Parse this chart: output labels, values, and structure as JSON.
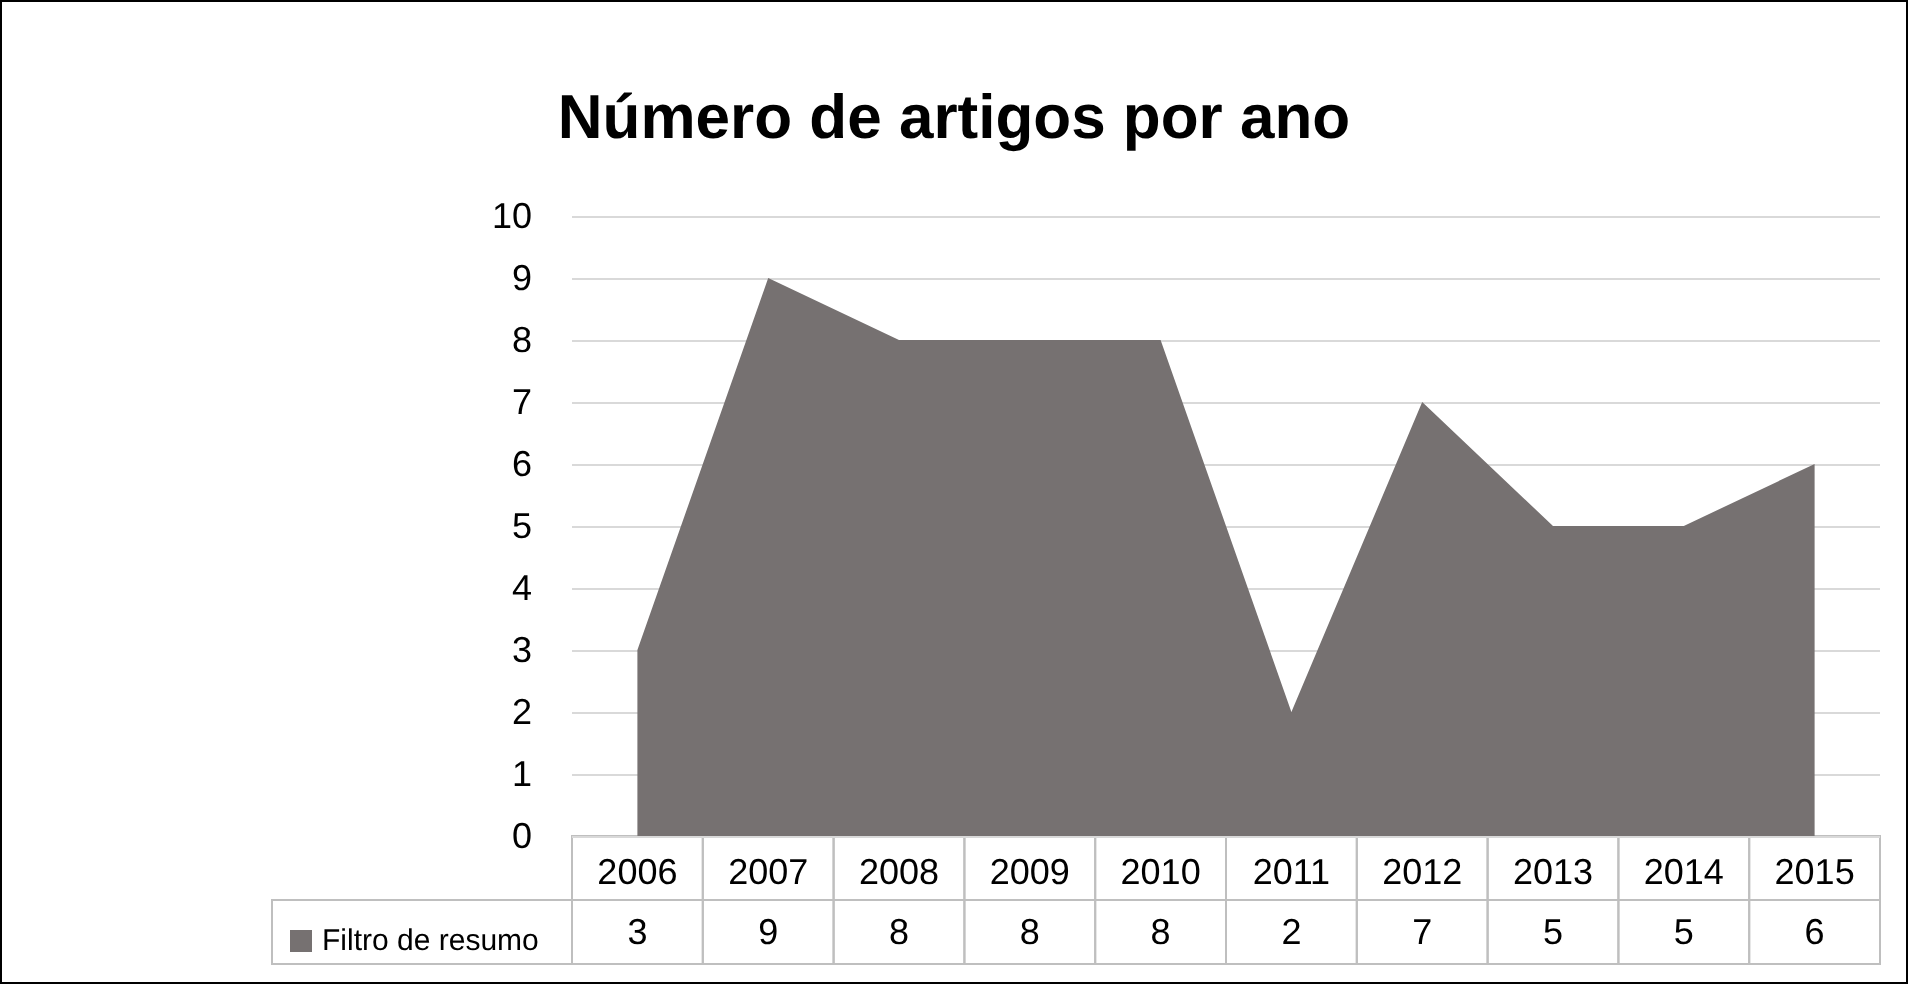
{
  "chart_data": {
    "type": "area",
    "title": "Número de artigos por ano",
    "categories": [
      "2006",
      "2007",
      "2008",
      "2009",
      "2010",
      "2011",
      "2012",
      "2013",
      "2014",
      "2015"
    ],
    "series": [
      {
        "name": "Filtro de resumo",
        "color": "#767171",
        "values": [
          3,
          9,
          8,
          8,
          8,
          2,
          7,
          5,
          5,
          6
        ]
      }
    ],
    "ylim": [
      0,
      10
    ],
    "yticks": [
      0,
      1,
      2,
      3,
      4,
      5,
      6,
      7,
      8,
      9,
      10
    ],
    "grid": "y",
    "legend": "bottom",
    "data_labels": true
  }
}
